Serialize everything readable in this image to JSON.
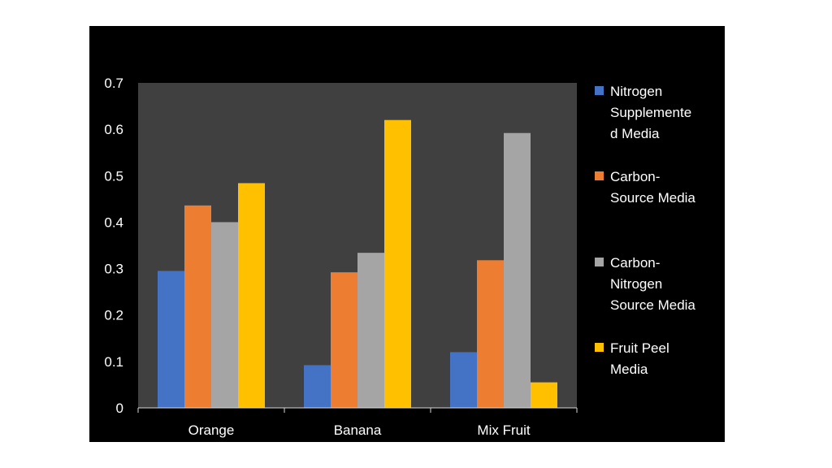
{
  "chart_data": {
    "type": "bar",
    "categories": [
      "Orange",
      "Banana",
      "Mix Fruit"
    ],
    "series": [
      {
        "name": "Nitrogen Supplemente d Media",
        "values": [
          0.295,
          0.092,
          0.12
        ],
        "color": "#4472C4"
      },
      {
        "name": "Carbon-Source Media",
        "values": [
          0.436,
          0.292,
          0.318
        ],
        "color": "#ED7D31"
      },
      {
        "name": "Carbon-Nitrogen Source Media",
        "values": [
          0.4,
          0.334,
          0.592
        ],
        "color": "#A5A5A5"
      },
      {
        "name": "Fruit Peel Media",
        "values": [
          0.484,
          0.62,
          0.055
        ],
        "color": "#FFC000"
      }
    ],
    "yticks": [
      "0",
      "0.1",
      "0.2",
      "0.3",
      "0.4",
      "0.5",
      "0.6",
      "0.7"
    ],
    "ylim": [
      0,
      0.7
    ],
    "grid": false,
    "legend_position": "right",
    "plot_background": "#404040",
    "figure_background": "#000000"
  }
}
